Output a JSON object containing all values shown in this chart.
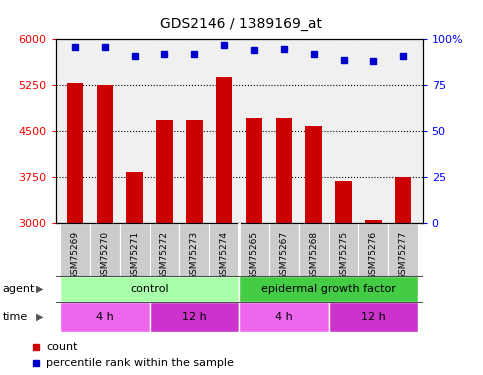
{
  "title": "GDS2146 / 1389169_at",
  "samples": [
    "GSM75269",
    "GSM75270",
    "GSM75271",
    "GSM75272",
    "GSM75273",
    "GSM75274",
    "GSM75265",
    "GSM75267",
    "GSM75268",
    "GSM75275",
    "GSM75276",
    "GSM75277"
  ],
  "bar_values": [
    5280,
    5250,
    3840,
    4680,
    4680,
    5380,
    4720,
    4720,
    4580,
    3680,
    3050,
    3760
  ],
  "pct_values": [
    96,
    96,
    91,
    92,
    92,
    97,
    94,
    95,
    92,
    89,
    88,
    91
  ],
  "bar_color": "#cc0000",
  "dot_color": "#0000cc",
  "ylim_left": [
    3000,
    6000
  ],
  "ylim_right": [
    0,
    100
  ],
  "yticks_left": [
    3000,
    3750,
    4500,
    5250,
    6000
  ],
  "ytick_labels_left": [
    "3000",
    "3750",
    "4500",
    "5250",
    "6000"
  ],
  "yticks_right": [
    0,
    25,
    50,
    75,
    100
  ],
  "ytick_labels_right": [
    "0",
    "25",
    "50",
    "75",
    "100%"
  ],
  "bg_color": "#f0f0f0",
  "agent_groups": [
    {
      "text": "control",
      "start": 0,
      "end": 6,
      "color": "#aaffaa"
    },
    {
      "text": "epidermal growth factor",
      "start": 6,
      "end": 12,
      "color": "#44cc44"
    }
  ],
  "time_groups": [
    {
      "text": "4 h",
      "start": 0,
      "end": 3,
      "color": "#ee66ee"
    },
    {
      "text": "12 h",
      "start": 3,
      "end": 6,
      "color": "#cc33cc"
    },
    {
      "text": "4 h",
      "start": 6,
      "end": 9,
      "color": "#ee66ee"
    },
    {
      "text": "12 h",
      "start": 9,
      "end": 12,
      "color": "#cc33cc"
    }
  ],
  "sample_bg": "#cccccc",
  "sample_divider": 6
}
